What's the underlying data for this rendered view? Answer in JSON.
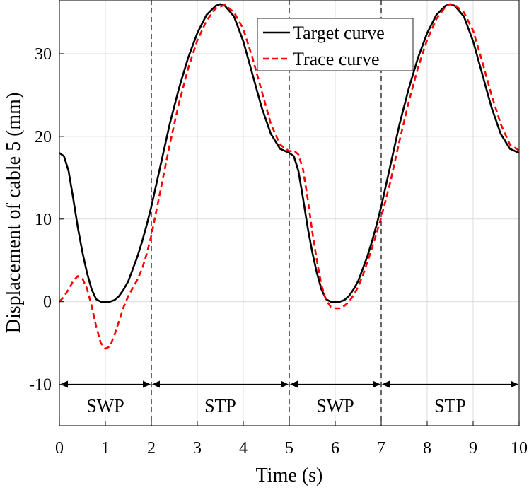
{
  "chart_data": {
    "type": "line",
    "xlabel": "Time (s)",
    "ylabel": "Displacement of cable 5 (mm)",
    "xlim": [
      0,
      10
    ],
    "ylim": [
      -15,
      36.5
    ],
    "x_ticks": [
      0,
      1,
      2,
      3,
      4,
      5,
      6,
      7,
      8,
      9,
      10
    ],
    "x_tick_labels": [
      "0",
      "1",
      "2",
      "3",
      "4",
      "5",
      "6",
      "7",
      "8",
      "9",
      "10"
    ],
    "y_ticks": [
      -10,
      0,
      10,
      20,
      30
    ],
    "y_tick_labels": [
      "-10",
      "0",
      "10",
      "20",
      "30"
    ],
    "grid": true,
    "legend_position": "top-right",
    "series": [
      {
        "name": "Target curve",
        "color": "#000000",
        "style": "solid",
        "points": [
          [
            0,
            18
          ],
          [
            0.1,
            17.6
          ],
          [
            0.2,
            15.8
          ],
          [
            0.3,
            12.5
          ],
          [
            0.4,
            9
          ],
          [
            0.5,
            6
          ],
          [
            0.6,
            3.5
          ],
          [
            0.7,
            1.5
          ],
          [
            0.8,
            0.3
          ],
          [
            0.9,
            0
          ],
          [
            1,
            0
          ],
          [
            1.1,
            0
          ],
          [
            1.2,
            0.2
          ],
          [
            1.3,
            0.7
          ],
          [
            1.4,
            1.5
          ],
          [
            1.5,
            2.5
          ],
          [
            1.6,
            4
          ],
          [
            1.7,
            5.5
          ],
          [
            1.8,
            7.3
          ],
          [
            1.9,
            9.3
          ],
          [
            2,
            11.5
          ],
          [
            2.2,
            16.5
          ],
          [
            2.4,
            21.5
          ],
          [
            2.6,
            25.8
          ],
          [
            2.8,
            29.5
          ],
          [
            3,
            32.5
          ],
          [
            3.2,
            34.7
          ],
          [
            3.4,
            35.8
          ],
          [
            3.5,
            36
          ],
          [
            3.6,
            35.8
          ],
          [
            3.8,
            34.5
          ],
          [
            4,
            31.5
          ],
          [
            4.2,
            27.5
          ],
          [
            4.4,
            23.5
          ],
          [
            4.6,
            20.3
          ],
          [
            4.8,
            18.5
          ],
          [
            5,
            18
          ],
          [
            5.1,
            17.6
          ],
          [
            5.2,
            15.8
          ],
          [
            5.3,
            12.5
          ],
          [
            5.4,
            9
          ],
          [
            5.5,
            6
          ],
          [
            5.6,
            3.5
          ],
          [
            5.7,
            1.5
          ],
          [
            5.8,
            0.3
          ],
          [
            5.9,
            0
          ],
          [
            6,
            0
          ],
          [
            6.1,
            0
          ],
          [
            6.2,
            0.2
          ],
          [
            6.3,
            0.7
          ],
          [
            6.4,
            1.5
          ],
          [
            6.5,
            2.5
          ],
          [
            6.6,
            4
          ],
          [
            6.7,
            5.5
          ],
          [
            6.8,
            7.3
          ],
          [
            6.9,
            9.3
          ],
          [
            7,
            11.5
          ],
          [
            7.2,
            16.5
          ],
          [
            7.4,
            21.5
          ],
          [
            7.6,
            25.8
          ],
          [
            7.8,
            29.5
          ],
          [
            8,
            32.5
          ],
          [
            8.2,
            34.7
          ],
          [
            8.4,
            35.8
          ],
          [
            8.5,
            36
          ],
          [
            8.6,
            35.8
          ],
          [
            8.8,
            34.5
          ],
          [
            9,
            31.5
          ],
          [
            9.2,
            27.5
          ],
          [
            9.4,
            23.5
          ],
          [
            9.6,
            20.3
          ],
          [
            9.8,
            18.5
          ],
          [
            10,
            18
          ]
        ]
      },
      {
        "name": "Trace curve",
        "color": "#ff0000",
        "style": "dashed",
        "points": [
          [
            0,
            0
          ],
          [
            0.1,
            0.6
          ],
          [
            0.2,
            1.5
          ],
          [
            0.3,
            2.5
          ],
          [
            0.4,
            3.1
          ],
          [
            0.5,
            2.8
          ],
          [
            0.6,
            1.6
          ],
          [
            0.7,
            -0.5
          ],
          [
            0.8,
            -3
          ],
          [
            0.9,
            -5
          ],
          [
            1,
            -5.7
          ],
          [
            1.1,
            -5.4
          ],
          [
            1.2,
            -4
          ],
          [
            1.3,
            -2.3
          ],
          [
            1.4,
            -0.6
          ],
          [
            1.5,
            0.7
          ],
          [
            1.6,
            1.7
          ],
          [
            1.7,
            2.7
          ],
          [
            1.8,
            4
          ],
          [
            1.9,
            5.8
          ],
          [
            2,
            8
          ],
          [
            2.2,
            13.5
          ],
          [
            2.4,
            19
          ],
          [
            2.6,
            24
          ],
          [
            2.8,
            28.2
          ],
          [
            3,
            31.6
          ],
          [
            3.2,
            34
          ],
          [
            3.4,
            35.5
          ],
          [
            3.6,
            35.9
          ],
          [
            3.8,
            35
          ],
          [
            4,
            33
          ],
          [
            4.2,
            29.5
          ],
          [
            4.4,
            25.5
          ],
          [
            4.6,
            21.5
          ],
          [
            4.8,
            19
          ],
          [
            5,
            18.2
          ],
          [
            5.1,
            18.3
          ],
          [
            5.2,
            17.8
          ],
          [
            5.3,
            16
          ],
          [
            5.4,
            12.5
          ],
          [
            5.5,
            8.5
          ],
          [
            5.6,
            5
          ],
          [
            5.7,
            2
          ],
          [
            5.8,
            0.2
          ],
          [
            5.9,
            -0.6
          ],
          [
            6,
            -0.8
          ],
          [
            6.1,
            -0.8
          ],
          [
            6.2,
            -0.5
          ],
          [
            6.3,
            0
          ],
          [
            6.4,
            0.8
          ],
          [
            6.5,
            1.8
          ],
          [
            6.6,
            3.2
          ],
          [
            6.7,
            4.8
          ],
          [
            6.8,
            6.5
          ],
          [
            6.9,
            8.3
          ],
          [
            7,
            10.2
          ],
          [
            7.2,
            14.5
          ],
          [
            7.4,
            19.5
          ],
          [
            7.6,
            24.2
          ],
          [
            7.8,
            28.3
          ],
          [
            8,
            31.7
          ],
          [
            8.2,
            34.2
          ],
          [
            8.4,
            35.7
          ],
          [
            8.5,
            36
          ],
          [
            8.6,
            35.9
          ],
          [
            8.8,
            35
          ],
          [
            9,
            32.8
          ],
          [
            9.2,
            29
          ],
          [
            9.4,
            25
          ],
          [
            9.6,
            21.5
          ],
          [
            9.8,
            19
          ],
          [
            10,
            18.3
          ]
        ]
      }
    ],
    "phase_dividers_x": [
      2,
      5,
      7
    ],
    "phase_arrow_y": -10,
    "phases": [
      {
        "label": "SWP",
        "start": 0,
        "end": 2
      },
      {
        "label": "STP",
        "start": 2,
        "end": 5
      },
      {
        "label": "SWP",
        "start": 5,
        "end": 7
      },
      {
        "label": "STP",
        "start": 7,
        "end": 10
      }
    ]
  }
}
